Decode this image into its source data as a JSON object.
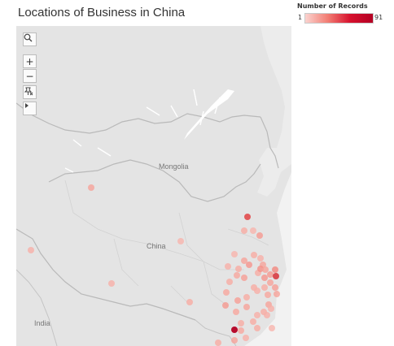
{
  "title": "Locations of Business in China",
  "legend": {
    "title": "Number of Records",
    "min": "1",
    "max": "91",
    "color_low": "#fbd3cf",
    "color_high": "#b40023"
  },
  "map": {
    "labels": {
      "mongolia": "Mongolia",
      "china": "China",
      "india": "India"
    },
    "controls": {
      "search_icon": "search-icon",
      "zoom_in": "+",
      "zoom_out": "−",
      "pin_icon": "pin-icon",
      "play_icon": "play-icon"
    }
  },
  "points": [
    {
      "name": "p1",
      "v": 12
    },
    {
      "name": "p2",
      "v": 9
    },
    {
      "name": "p3",
      "v": 40
    },
    {
      "name": "p4",
      "v": 8
    },
    {
      "name": "p5",
      "v": 10
    },
    {
      "name": "p6",
      "v": 14
    },
    {
      "name": "p7",
      "v": 10
    },
    {
      "name": "p8",
      "v": 9
    },
    {
      "name": "p9",
      "v": 8
    },
    {
      "name": "p10",
      "v": 12
    },
    {
      "name": "p11",
      "v": 10
    },
    {
      "name": "p12",
      "v": 15
    },
    {
      "name": "p13",
      "v": 12
    },
    {
      "name": "p14",
      "v": 10
    },
    {
      "name": "p15",
      "v": 9
    },
    {
      "name": "p16",
      "v": 11
    },
    {
      "name": "p17",
      "v": 13
    },
    {
      "name": "p18",
      "v": 10
    },
    {
      "name": "p19",
      "v": 16
    },
    {
      "name": "p20",
      "v": 12
    },
    {
      "name": "p21",
      "v": 14
    },
    {
      "name": "p22",
      "v": 18
    },
    {
      "name": "p23",
      "v": 15
    },
    {
      "name": "p24",
      "v": 12
    },
    {
      "name": "p25",
      "v": 10
    },
    {
      "name": "p26",
      "v": 13
    },
    {
      "name": "p27",
      "v": 9
    },
    {
      "name": "p28",
      "v": 11
    },
    {
      "name": "p29",
      "v": 12
    },
    {
      "name": "p30",
      "v": 10
    },
    {
      "name": "p31",
      "v": 13
    },
    {
      "name": "p32",
      "v": 11
    },
    {
      "name": "p33",
      "v": 10
    },
    {
      "name": "p34",
      "v": 50
    },
    {
      "name": "p35",
      "v": 12
    },
    {
      "name": "p36",
      "v": 10
    },
    {
      "name": "p37",
      "v": 9
    },
    {
      "name": "p38",
      "v": 14
    },
    {
      "name": "p39",
      "v": 11
    },
    {
      "name": "p40",
      "v": 12
    },
    {
      "name": "p41",
      "v": 10
    },
    {
      "name": "p42",
      "v": 9
    },
    {
      "name": "p43",
      "v": 10
    },
    {
      "name": "p44",
      "v": 9
    },
    {
      "name": "p45",
      "v": 8
    },
    {
      "name": "p46",
      "v": 10
    },
    {
      "name": "p47",
      "v": 11
    },
    {
      "name": "p48",
      "v": 12
    },
    {
      "name": "p49",
      "v": 9
    },
    {
      "name": "p50",
      "v": 10
    },
    {
      "name": "p51",
      "v": 91
    },
    {
      "name": "p52",
      "v": 8
    },
    {
      "name": "p53",
      "v": 9
    },
    {
      "name": "p54",
      "v": 10
    }
  ]
}
